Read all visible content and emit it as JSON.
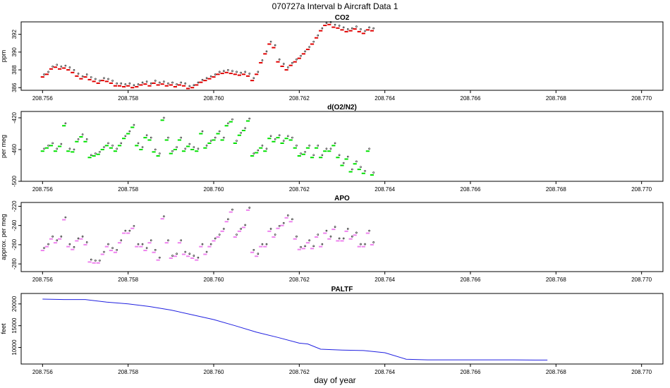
{
  "figure": {
    "title": "070727a   Interval b Aircraft Data 1",
    "xlabel": "day of year"
  },
  "colors": {
    "co2": "#e00000",
    "o2n2": "#00e000",
    "apo": "#ee82ee",
    "paltf": "#2020e0",
    "outline": "#000000"
  },
  "chart_data": [
    {
      "type": "scatter",
      "title": "CO2",
      "xlabel": "",
      "ylabel": "ppm",
      "xlim": [
        208.7555,
        208.7705
      ],
      "xticks": [
        208.756,
        208.758,
        208.76,
        208.762,
        208.764,
        208.766,
        208.768,
        208.77
      ],
      "xtick_labels": [
        "208.756",
        "208.758",
        "208.760",
        "208.762",
        "208.764",
        "208.766",
        "208.768",
        "208.770"
      ],
      "ylim": [
        385.7,
        393.4
      ],
      "yticks": [
        386,
        388,
        390,
        392
      ],
      "ytick_labels": [
        "386",
        "388",
        "390",
        "392"
      ],
      "series": [
        {
          "x": [
            208.756,
            208.7561,
            208.7562,
            208.7563,
            208.7564,
            208.7565,
            208.7566,
            208.7567,
            208.7568,
            208.7569,
            208.757,
            208.7571,
            208.7572,
            208.7573,
            208.7574,
            208.7575,
            208.7576,
            208.7577,
            208.7578,
            208.7579,
            208.758,
            208.7581,
            208.7582,
            208.7583,
            208.7584,
            208.7585,
            208.7586,
            208.7587,
            208.7588,
            208.7589,
            208.759,
            208.7591,
            208.7592,
            208.7593,
            208.7594,
            208.7595,
            208.7596,
            208.7597,
            208.7598,
            208.7599,
            208.76,
            208.7601,
            208.7602,
            208.7603,
            208.7604,
            208.7605,
            208.7606,
            208.7607,
            208.7608,
            208.7609,
            208.761,
            208.7611,
            208.7612,
            208.7613,
            208.7614,
            208.7615,
            208.7616,
            208.7617,
            208.7618,
            208.7619,
            208.762,
            208.7621,
            208.7622,
            208.7623,
            208.7624,
            208.7625,
            208.7626,
            208.7627,
            208.7628,
            208.7629,
            208.763,
            208.7631,
            208.7632,
            208.7633,
            208.7634,
            208.7635,
            208.7636,
            208.7637
          ],
          "values": [
            387.2,
            387.5,
            388.1,
            388.3,
            388.1,
            388.2,
            388.0,
            387.7,
            387.3,
            387.0,
            387.2,
            386.9,
            386.7,
            386.5,
            386.8,
            386.7,
            386.5,
            386.2,
            386.2,
            386.1,
            386.2,
            386.0,
            386.1,
            386.3,
            386.4,
            386.2,
            386.5,
            386.3,
            386.4,
            386.2,
            386.3,
            386.1,
            386.3,
            386.2,
            385.9,
            386.0,
            386.3,
            386.6,
            386.8,
            387.0,
            387.2,
            387.5,
            387.6,
            387.7,
            387.6,
            387.5,
            387.4,
            387.5,
            387.3,
            386.8,
            387.5,
            388.8,
            389.8,
            390.9,
            390.5,
            388.9,
            388.4,
            388.0,
            388.5,
            388.9,
            389.3,
            389.8,
            390.3,
            390.9,
            391.6,
            392.4,
            393.0,
            393.1,
            392.8,
            392.7,
            392.5,
            392.3,
            392.4,
            392.6,
            392.3,
            392.1,
            392.5,
            392.4
          ]
        }
      ]
    },
    {
      "type": "scatter",
      "title": "d(O2/N2)",
      "xlabel": "",
      "ylabel": "per meg",
      "xlim": [
        208.7555,
        208.7705
      ],
      "xticks": [
        208.756,
        208.758,
        208.76,
        208.762,
        208.764,
        208.766,
        208.768,
        208.77
      ],
      "xtick_labels": [
        "208.756",
        "208.758",
        "208.760",
        "208.762",
        "208.764",
        "208.766",
        "208.768",
        "208.770"
      ],
      "ylim": [
        -500,
        -412
      ],
      "yticks": [
        -500,
        -460,
        -420
      ],
      "ytick_labels": [
        "-500",
        "-460",
        "-420"
      ],
      "series": [
        {
          "x": [
            208.756,
            208.7561,
            208.7562,
            208.7563,
            208.7564,
            208.7565,
            208.7566,
            208.7567,
            208.7568,
            208.7569,
            208.757,
            208.7571,
            208.7572,
            208.7573,
            208.7574,
            208.7575,
            208.7576,
            208.7577,
            208.7578,
            208.7579,
            208.758,
            208.7581,
            208.7582,
            208.7583,
            208.7584,
            208.7585,
            208.7586,
            208.7587,
            208.7588,
            208.7589,
            208.759,
            208.7591,
            208.7592,
            208.7593,
            208.7594,
            208.7595,
            208.7596,
            208.7597,
            208.7598,
            208.7599,
            208.76,
            208.7601,
            208.7602,
            208.7603,
            208.7604,
            208.7605,
            208.7606,
            208.7607,
            208.7608,
            208.7609,
            208.761,
            208.7611,
            208.7612,
            208.7613,
            208.7614,
            208.7615,
            208.7616,
            208.7617,
            208.7618,
            208.7619,
            208.762,
            208.7621,
            208.7622,
            208.7623,
            208.7624,
            208.7625,
            208.7626,
            208.7627,
            208.7628,
            208.7629,
            208.763,
            208.7631,
            208.7632,
            208.7633,
            208.7634,
            208.7635,
            208.7636,
            208.7637
          ],
          "values": [
            -462,
            -458,
            -455,
            -462,
            -456,
            -430,
            -462,
            -463,
            -450,
            -444,
            -450,
            -470,
            -468,
            -466,
            -460,
            -455,
            -458,
            -462,
            -455,
            -446,
            -440,
            -432,
            -455,
            -460,
            -445,
            -448,
            -463,
            -468,
            -423,
            -448,
            -465,
            -460,
            -448,
            -462,
            -456,
            -460,
            -462,
            -440,
            -458,
            -452,
            -448,
            -440,
            -448,
            -430,
            -425,
            -452,
            -442,
            -436,
            -424,
            -468,
            -464,
            -458,
            -462,
            -446,
            -450,
            -445,
            -452,
            -446,
            -448,
            -458,
            -468,
            -466,
            -458,
            -470,
            -458,
            -470,
            -462,
            -462,
            -455,
            -470,
            -480,
            -472,
            -488,
            -478,
            -485,
            -490,
            -462,
            -492
          ]
        }
      ]
    },
    {
      "type": "scatter",
      "title": "APO",
      "xlabel": "",
      "ylabel": "approx. per meg",
      "xlim": [
        208.7555,
        208.7705
      ],
      "xticks": [
        208.756,
        208.758,
        208.76,
        208.762,
        208.764,
        208.766,
        208.768,
        208.77
      ],
      "xtick_labels": [
        "208.756",
        "208.758",
        "208.760",
        "208.762",
        "208.764",
        "208.766",
        "208.768",
        "208.770"
      ],
      "ylim": [
        -288,
        -216
      ],
      "yticks": [
        -280,
        -260,
        -240,
        -220
      ],
      "ytick_labels": [
        "-280",
        "-260",
        "-240",
        "-220"
      ],
      "series": [
        {
          "x": [
            208.756,
            208.7561,
            208.7562,
            208.7563,
            208.7564,
            208.7565,
            208.7566,
            208.7567,
            208.7568,
            208.7569,
            208.757,
            208.7571,
            208.7572,
            208.7573,
            208.7574,
            208.7575,
            208.7576,
            208.7577,
            208.7578,
            208.7579,
            208.758,
            208.7581,
            208.7582,
            208.7583,
            208.7584,
            208.7585,
            208.7586,
            208.7587,
            208.7588,
            208.7589,
            208.759,
            208.7591,
            208.7592,
            208.7593,
            208.7594,
            208.7595,
            208.7596,
            208.7597,
            208.7598,
            208.7599,
            208.76,
            208.7601,
            208.7602,
            208.7603,
            208.7604,
            208.7605,
            208.7606,
            208.7607,
            208.7608,
            208.7609,
            208.761,
            208.7611,
            208.7612,
            208.7613,
            208.7614,
            208.7615,
            208.7616,
            208.7617,
            208.7618,
            208.7619,
            208.762,
            208.7621,
            208.7622,
            208.7623,
            208.7624,
            208.7625,
            208.7626,
            208.7627,
            208.7628,
            208.7629,
            208.763,
            208.7631,
            208.7632,
            208.7633,
            208.7634,
            208.7635,
            208.7636,
            208.7637
          ],
          "values": [
            -266,
            -262,
            -254,
            -258,
            -254,
            -234,
            -262,
            -265,
            -256,
            -254,
            -260,
            -278,
            -279,
            -279,
            -270,
            -262,
            -266,
            -268,
            -258,
            -248,
            -248,
            -243,
            -262,
            -262,
            -266,
            -258,
            -268,
            -276,
            -233,
            -258,
            -274,
            -272,
            -258,
            -270,
            -272,
            -274,
            -276,
            -262,
            -270,
            -262,
            -256,
            -252,
            -246,
            -236,
            -226,
            -252,
            -246,
            -242,
            -224,
            -268,
            -272,
            -262,
            -262,
            -246,
            -252,
            -243,
            -240,
            -232,
            -236,
            -254,
            -265,
            -264,
            -258,
            -264,
            -252,
            -262,
            -248,
            -254,
            -244,
            -256,
            -256,
            -246,
            -254,
            -250,
            -262,
            -262,
            -248,
            -260
          ]
        }
      ]
    },
    {
      "type": "line",
      "title": "PALTF",
      "xlabel": "day of year",
      "ylabel": "feet",
      "xlim": [
        208.7555,
        208.7705
      ],
      "xticks": [
        208.756,
        208.758,
        208.76,
        208.762,
        208.764,
        208.766,
        208.768,
        208.77
      ],
      "xtick_labels": [
        "208.756",
        "208.758",
        "208.760",
        "208.762",
        "208.764",
        "208.766",
        "208.768",
        "208.770"
      ],
      "ylim": [
        6200,
        22400
      ],
      "yticks": [
        10000,
        15000,
        20000
      ],
      "ytick_labels": [
        "10000",
        "15000",
        "20000"
      ],
      "series": [
        {
          "x": [
            208.756,
            208.7565,
            208.757,
            208.7575,
            208.758,
            208.7585,
            208.759,
            208.7595,
            208.76,
            208.7605,
            208.761,
            208.7615,
            208.762,
            208.7622,
            208.7625,
            208.763,
            208.7635,
            208.764,
            208.7645,
            208.765,
            208.7655,
            208.766,
            208.7665,
            208.767,
            208.7675,
            208.7678
          ],
          "values": [
            21100,
            21000,
            21000,
            20400,
            20000,
            19400,
            18600,
            17500,
            16400,
            15000,
            13500,
            12300,
            11000,
            10800,
            9600,
            9400,
            9300,
            8800,
            7300,
            7150,
            7150,
            7150,
            7150,
            7150,
            7100,
            7100
          ]
        }
      ]
    }
  ]
}
